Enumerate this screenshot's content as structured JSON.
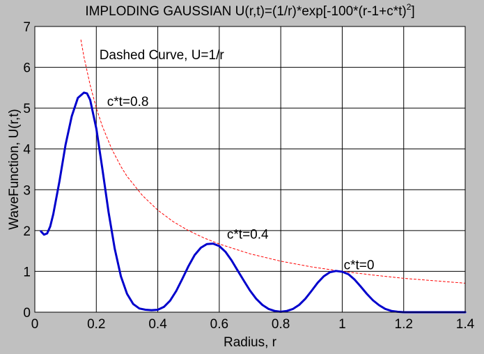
{
  "chart_data": {
    "type": "line",
    "title": "IMPLODING GAUSSIAN U(r,t)=(1/r)*exp[-100*(r-1+c*t)",
    "title_superscript": "2",
    "title_suffix": "]",
    "xlabel": "Radius, r",
    "ylabel": "WaveFunction, U(r,t)",
    "xlim": [
      0,
      1.4
    ],
    "ylim": [
      0,
      7
    ],
    "xticks": [
      0,
      0.2,
      0.4,
      0.6,
      0.8,
      1,
      1.2,
      1.4
    ],
    "xtick_labels": [
      "0",
      "0.2",
      "0.4",
      "0.6",
      "0.8",
      "1",
      "1.2",
      "1.4"
    ],
    "yticks": [
      0,
      1,
      2,
      3,
      4,
      5,
      6,
      7
    ],
    "ytick_labels": [
      "0",
      "1",
      "2",
      "3",
      "4",
      "5",
      "6",
      "7"
    ],
    "grid": true,
    "colors": {
      "background": "#c0c0c0",
      "plot_area": "#ffffff",
      "solid_series": "#0000cc",
      "dashed_series": "#ff0000",
      "grid": "#000000"
    },
    "series": [
      {
        "style": "solid",
        "color": "#0000cc",
        "x": [
          0.02,
          0.03,
          0.04,
          0.05,
          0.06,
          0.08,
          0.1,
          0.12,
          0.14,
          0.16,
          0.17,
          0.18,
          0.2,
          0.22,
          0.24,
          0.26,
          0.28,
          0.3,
          0.32,
          0.34,
          0.36,
          0.38,
          0.4,
          0.42,
          0.44,
          0.46,
          0.48,
          0.5,
          0.52,
          0.54,
          0.56,
          0.58,
          0.6,
          0.62,
          0.64,
          0.66,
          0.68,
          0.7,
          0.72,
          0.74,
          0.76,
          0.78,
          0.8,
          0.82,
          0.84,
          0.86,
          0.88,
          0.9,
          0.92,
          0.94,
          0.96,
          0.98,
          1.0,
          1.02,
          1.04,
          1.06,
          1.08,
          1.1,
          1.12,
          1.14,
          1.16,
          1.18,
          1.2,
          1.25,
          1.3,
          1.35,
          1.4
        ],
        "y": [
          1.98,
          1.9,
          1.93,
          2.1,
          2.4,
          3.2,
          4.1,
          4.8,
          5.25,
          5.38,
          5.36,
          5.2,
          4.5,
          3.5,
          2.45,
          1.55,
          0.88,
          0.45,
          0.2,
          0.09,
          0.06,
          0.05,
          0.06,
          0.13,
          0.28,
          0.52,
          0.82,
          1.13,
          1.4,
          1.58,
          1.67,
          1.68,
          1.62,
          1.48,
          1.27,
          1.02,
          0.77,
          0.53,
          0.33,
          0.18,
          0.08,
          0.03,
          0.01,
          0.03,
          0.08,
          0.18,
          0.33,
          0.52,
          0.72,
          0.88,
          0.98,
          1.01,
          0.99,
          0.93,
          0.8,
          0.63,
          0.45,
          0.29,
          0.17,
          0.08,
          0.03,
          0.01,
          0.0,
          0.0,
          0.0,
          0.0,
          0.0
        ]
      },
      {
        "style": "dashed",
        "color": "#ff0000",
        "x": [
          0.15,
          0.16,
          0.18,
          0.2,
          0.22,
          0.25,
          0.28,
          0.3,
          0.35,
          0.4,
          0.45,
          0.5,
          0.55,
          0.6,
          0.7,
          0.8,
          0.9,
          1.0,
          1.1,
          1.2,
          1.3,
          1.4
        ],
        "y": [
          6.67,
          6.25,
          5.56,
          5.0,
          4.55,
          4.0,
          3.57,
          3.33,
          2.86,
          2.5,
          2.22,
          2.0,
          1.82,
          1.67,
          1.43,
          1.25,
          1.11,
          1.0,
          0.91,
          0.83,
          0.77,
          0.71
        ]
      }
    ],
    "annotations": [
      {
        "text": "Dashed Curve, U=1/r",
        "x": 0.21,
        "y": 6.2
      },
      {
        "text": "c*t=0.8",
        "x": 0.235,
        "y": 5.05
      },
      {
        "text": "c*t=0.4",
        "x": 0.625,
        "y": 1.8
      },
      {
        "text": "c*t=0",
        "x": 1.005,
        "y": 1.05
      }
    ]
  }
}
